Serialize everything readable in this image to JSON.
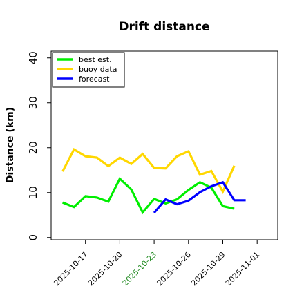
{
  "chart_data": {
    "type": "line",
    "title": "Drift distance",
    "xlabel": "",
    "ylabel": "Distance (km)",
    "ylim": [
      -0.5,
      41.5
    ],
    "yticks": [
      0,
      10,
      20,
      30,
      40
    ],
    "xticks": [
      {
        "x": 1,
        "label": "2025-10-17",
        "color": "#000000"
      },
      {
        "x": 4,
        "label": "2025-10-20",
        "color": "#000000"
      },
      {
        "x": 7,
        "label": "2025-10-23",
        "color": "#228b22"
      },
      {
        "x": 10,
        "label": "2025-10-26",
        "color": "#000000"
      },
      {
        "x": 13,
        "label": "2025-10-29",
        "color": "#000000"
      },
      {
        "x": 16,
        "label": "2025-11-01",
        "color": "#000000"
      }
    ],
    "xlim": [
      -2,
      17.8
    ],
    "grid": false,
    "legend": "top-left",
    "series": [
      {
        "name": "best est.",
        "color": "#00ee00",
        "x": [
          -1,
          0,
          1,
          2,
          3,
          4,
          5,
          6,
          7,
          8,
          9,
          10,
          11,
          12,
          13,
          14,
          15
        ],
        "values": [
          7.8,
          6.8,
          9.2,
          8.9,
          8.0,
          13.1,
          10.7,
          5.6,
          8.6,
          7.6,
          8.5,
          10.6,
          12.3,
          11.1,
          7.0,
          6.4,
          null
        ]
      },
      {
        "name": "buoy data",
        "color": "#ffd700",
        "x": [
          -1,
          0,
          1,
          2,
          3,
          4,
          5,
          6,
          7,
          8,
          9,
          10,
          11,
          12,
          13,
          14,
          15
        ],
        "values": [
          14.7,
          19.6,
          18.1,
          17.8,
          15.9,
          17.8,
          16.4,
          18.6,
          15.5,
          15.4,
          18.1,
          19.2,
          14.0,
          14.8,
          10.2,
          16.0,
          null
        ]
      },
      {
        "name": "forecast",
        "color": "#0000ff",
        "x": [
          7,
          8,
          9,
          10,
          11,
          12,
          13,
          14,
          15
        ],
        "values": [
          5.5,
          8.5,
          7.4,
          8.2,
          10.1,
          11.4,
          12.3,
          8.3,
          8.3
        ]
      }
    ]
  }
}
